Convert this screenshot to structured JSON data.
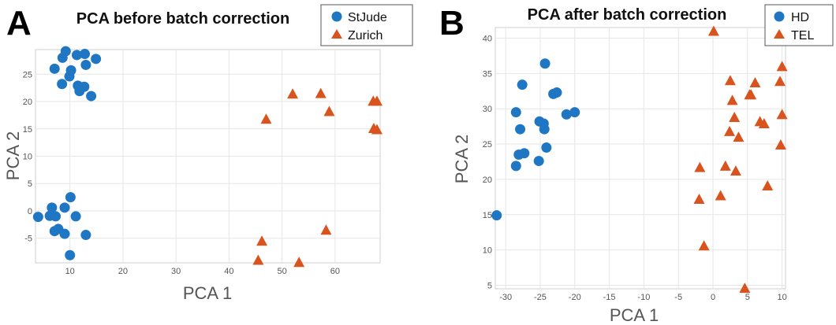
{
  "chart_data": [
    {
      "type": "scatter",
      "panel_label": "A",
      "title": "PCA before batch correction",
      "xlabel": "PCA 1",
      "ylabel": "PCA 2",
      "xlim": [
        3.5,
        68.5
      ],
      "ylim": [
        -9.5,
        29.5
      ],
      "xticks": [
        10,
        20,
        30,
        40,
        50,
        60
      ],
      "yticks": [
        -5,
        0,
        5,
        10,
        15,
        20,
        25
      ],
      "grid": true,
      "legend_position": "top-right",
      "series": [
        {
          "name": "StJude",
          "marker": "circle",
          "color": "#1f77c4",
          "points": [
            [
              9.2,
              29.2
            ],
            [
              11.3,
              28.5
            ],
            [
              12.8,
              28.7
            ],
            [
              8.6,
              28.0
            ],
            [
              14.9,
              27.8
            ],
            [
              7.1,
              26.0
            ],
            [
              13.0,
              26.7
            ],
            [
              10.2,
              25.7
            ],
            [
              9.9,
              24.6
            ],
            [
              8.5,
              23.2
            ],
            [
              11.5,
              22.9
            ],
            [
              12.7,
              22.7
            ],
            [
              11.8,
              21.9
            ],
            [
              14.0,
              21.0
            ],
            [
              10.1,
              2.5
            ],
            [
              4.0,
              -1.1
            ],
            [
              6.2,
              -0.9
            ],
            [
              6.6,
              0.6
            ],
            [
              9.0,
              0.6
            ],
            [
              7.3,
              -1.0
            ],
            [
              11.1,
              -1.0
            ],
            [
              7.8,
              -3.3
            ],
            [
              7.1,
              -3.7
            ],
            [
              9.0,
              -4.2
            ],
            [
              13.0,
              -4.4
            ],
            [
              10.0,
              -8.1
            ]
          ]
        },
        {
          "name": "Zurich",
          "marker": "triangle",
          "color": "#d9531e",
          "points": [
            [
              47.0,
              16.8
            ],
            [
              52.0,
              21.4
            ],
            [
              57.3,
              21.5
            ],
            [
              58.9,
              18.2
            ],
            [
              67.2,
              20.1
            ],
            [
              67.9,
              20.1
            ],
            [
              67.3,
              15.1
            ],
            [
              67.9,
              14.9
            ],
            [
              46.2,
              -5.5
            ],
            [
              58.3,
              -3.5
            ],
            [
              45.5,
              -9.0
            ],
            [
              53.2,
              -9.4
            ]
          ]
        }
      ]
    },
    {
      "type": "scatter",
      "panel_label": "B",
      "title": "PCA after batch correction",
      "xlabel": "PCA 1",
      "ylabel": "PCA 2",
      "xlim": [
        -31.5,
        10.5
      ],
      "ylim": [
        4.5,
        41.5
      ],
      "xticks": [
        -30,
        -25,
        -20,
        -15,
        -10,
        -5,
        0,
        5,
        10
      ],
      "yticks": [
        5,
        10,
        15,
        20,
        25,
        30,
        35,
        40
      ],
      "grid": true,
      "legend_position": "top-right",
      "series": [
        {
          "name": "HD",
          "marker": "circle",
          "color": "#1f77c4",
          "points": [
            [
              -31.3,
              14.9
            ],
            [
              -24.3,
              36.4
            ],
            [
              -27.6,
              33.4
            ],
            [
              -23.1,
              32.1
            ],
            [
              -22.6,
              32.3
            ],
            [
              -28.5,
              29.5
            ],
            [
              -25.1,
              28.2
            ],
            [
              -24.5,
              27.9
            ],
            [
              -21.2,
              29.2
            ],
            [
              -20.0,
              29.5
            ],
            [
              -27.9,
              27.1
            ],
            [
              -24.4,
              27.1
            ],
            [
              -24.1,
              24.5
            ],
            [
              -28.1,
              23.5
            ],
            [
              -27.3,
              23.7
            ],
            [
              -25.2,
              22.6
            ],
            [
              -28.5,
              21.9
            ]
          ]
        },
        {
          "name": "TEL",
          "marker": "triangle",
          "color": "#d9531e",
          "points": [
            [
              0.1,
              41.0
            ],
            [
              10.0,
              36.0
            ],
            [
              2.5,
              34.0
            ],
            [
              6.1,
              33.7
            ],
            [
              9.7,
              33.9
            ],
            [
              5.3,
              32.0
            ],
            [
              5.5,
              32.0
            ],
            [
              2.8,
              31.2
            ],
            [
              3.1,
              28.8
            ],
            [
              6.8,
              28.2
            ],
            [
              7.4,
              27.9
            ],
            [
              10.0,
              29.2
            ],
            [
              2.4,
              26.8
            ],
            [
              3.7,
              26.0
            ],
            [
              9.8,
              24.9
            ],
            [
              -1.9,
              21.7
            ],
            [
              1.8,
              21.9
            ],
            [
              3.3,
              21.2
            ],
            [
              7.9,
              19.1
            ],
            [
              1.1,
              17.7
            ],
            [
              -2.0,
              17.2
            ],
            [
              -1.3,
              10.6
            ],
            [
              4.6,
              4.6
            ]
          ]
        }
      ]
    }
  ]
}
